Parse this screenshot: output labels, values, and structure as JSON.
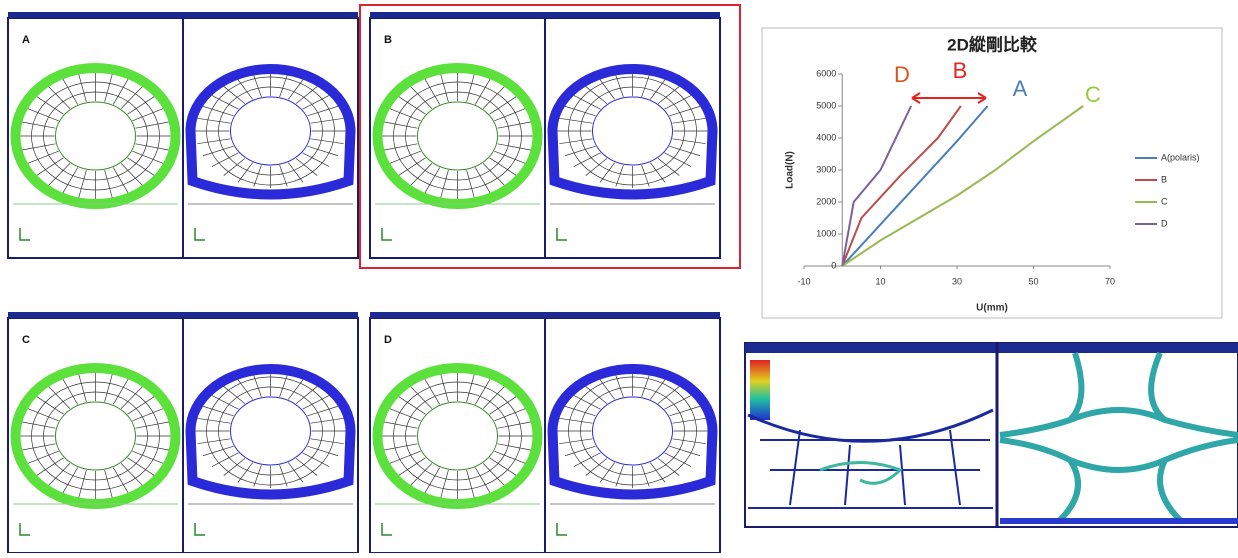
{
  "panels": [
    {
      "label": "A"
    },
    {
      "label": "B"
    },
    {
      "label": "C"
    },
    {
      "label": "D"
    }
  ],
  "chart_data": {
    "type": "line",
    "title": "2D縱剛比較",
    "x_label": "U(mm)",
    "y_label": "Load(N)",
    "xlim": [
      -10,
      70
    ],
    "xticks": [
      -10,
      10,
      30,
      50,
      70
    ],
    "ylim": [
      0,
      6000
    ],
    "yticks": [
      0,
      1000,
      2000,
      3000,
      4000,
      5000,
      6000
    ],
    "legend": "right",
    "series": [
      {
        "name": "A(polaris)",
        "color": "#4a7ebb",
        "x": [
          0,
          10,
          20,
          30,
          38
        ],
        "values": [
          0,
          1300,
          2600,
          3900,
          5000
        ]
      },
      {
        "name": "B",
        "color": "#be4b48",
        "x": [
          0,
          5,
          15,
          25,
          31
        ],
        "values": [
          0,
          1500,
          2800,
          4000,
          5000
        ]
      },
      {
        "name": "C",
        "color": "#98b954",
        "x": [
          0,
          10,
          20,
          30,
          40,
          50,
          63
        ],
        "values": [
          0,
          800,
          1500,
          2200,
          3000,
          3900,
          5000
        ]
      },
      {
        "name": "D",
        "color": "#7d60a0",
        "x": [
          0,
          3,
          10,
          18
        ],
        "values": [
          0,
          2000,
          3000,
          5000
        ]
      }
    ],
    "annotations": [
      {
        "text": "D",
        "color": "#d9541e"
      },
      {
        "text": "B",
        "color": "#e8231b"
      },
      {
        "text": "A",
        "color": "#4a7ebb"
      },
      {
        "text": "C",
        "color": "#98c93c"
      }
    ]
  }
}
